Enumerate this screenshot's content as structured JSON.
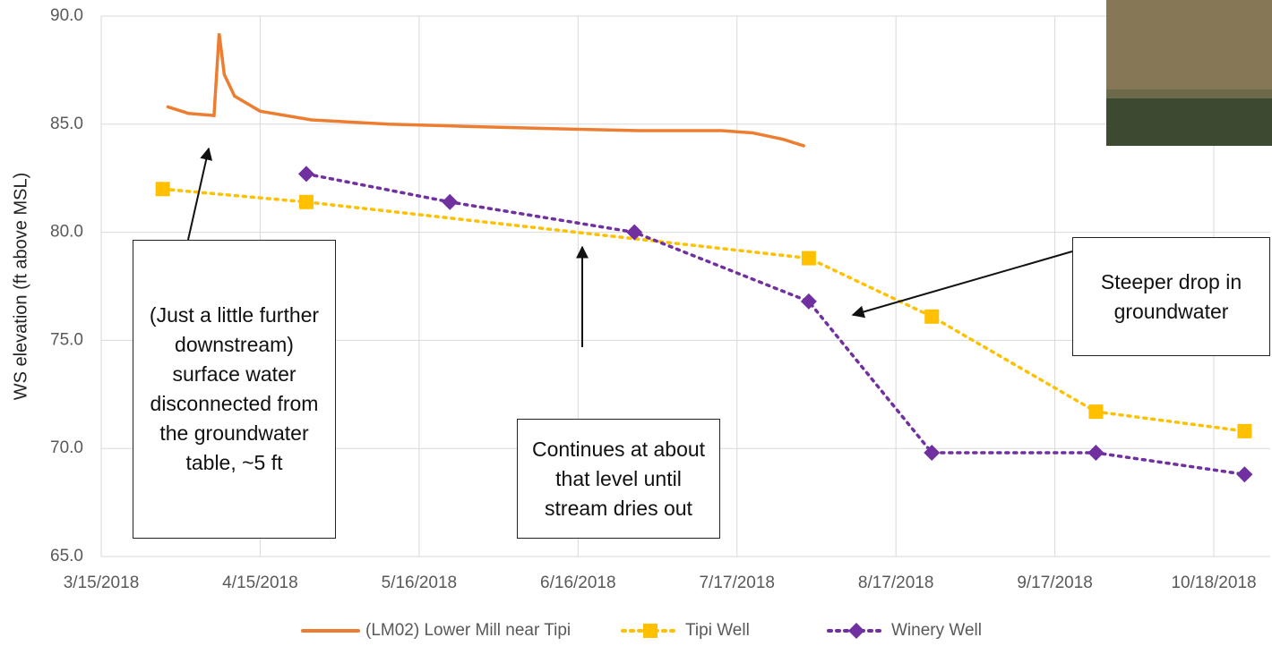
{
  "chart_data": {
    "type": "line",
    "y_label": "WS elevation (ft above MSL)",
    "xlim": [
      "3/15/2018",
      "10/29/2018"
    ],
    "xticks": [
      "3/15/2018",
      "4/15/2018",
      "5/16/2018",
      "6/16/2018",
      "7/17/2018",
      "8/17/2018",
      "9/17/2018",
      "10/18/2018"
    ],
    "ylim": [
      65,
      90
    ],
    "yticks": [
      {
        "value": 65,
        "label": "65.0"
      },
      {
        "value": 70,
        "label": "70.0"
      },
      {
        "value": 75,
        "label": "75.0"
      },
      {
        "value": 80,
        "label": "80.0"
      },
      {
        "value": 85,
        "label": "85.0"
      },
      {
        "value": 90,
        "label": "90.0"
      }
    ],
    "grid": true,
    "legend": "bottom",
    "series": [
      {
        "name": "(LM02) Lower Mill near Tipi",
        "color": "#ed7d31",
        "style": "solid",
        "marker": "none",
        "x": [
          "3/28/2018",
          "4/1/2018",
          "4/6/2018",
          "4/7/2018",
          "4/8/2018",
          "4/10/2018",
          "4/15/2018",
          "4/25/2018",
          "5/10/2018",
          "5/25/2018",
          "6/10/2018",
          "6/28/2018",
          "7/14/2018",
          "7/20/2018",
          "7/26/2018",
          "7/30/2018"
        ],
        "values": [
          85.8,
          85.5,
          85.4,
          89.2,
          87.3,
          86.3,
          85.6,
          85.2,
          85.0,
          84.9,
          84.8,
          84.7,
          84.7,
          84.6,
          84.3,
          84.0
        ]
      },
      {
        "name": "Tipi Well",
        "color": "#ffc000",
        "style": "dotted",
        "marker": "square",
        "x": [
          "3/27/2018",
          "4/24/2018",
          "7/31/2018",
          "8/24/2018",
          "9/25/2018",
          "10/24/2018"
        ],
        "values": [
          82.0,
          81.4,
          78.8,
          76.1,
          71.7,
          70.8
        ]
      },
      {
        "name": "Winery Well",
        "color": "#7030a0",
        "style": "dotted",
        "marker": "diamond",
        "x": [
          "4/24/2018",
          "5/22/2018",
          "6/27/2018",
          "7/31/2018",
          "8/24/2018",
          "9/25/2018",
          "10/24/2018"
        ],
        "values": [
          82.7,
          81.4,
          80.0,
          76.8,
          69.8,
          69.8,
          68.8
        ]
      }
    ],
    "annotations": [
      "(Just a little further downstream) surface water disconnected from the groundwater table, ~5 ft",
      "Continues at about that level until stream dries out",
      "Steeper drop in groundwater"
    ]
  }
}
